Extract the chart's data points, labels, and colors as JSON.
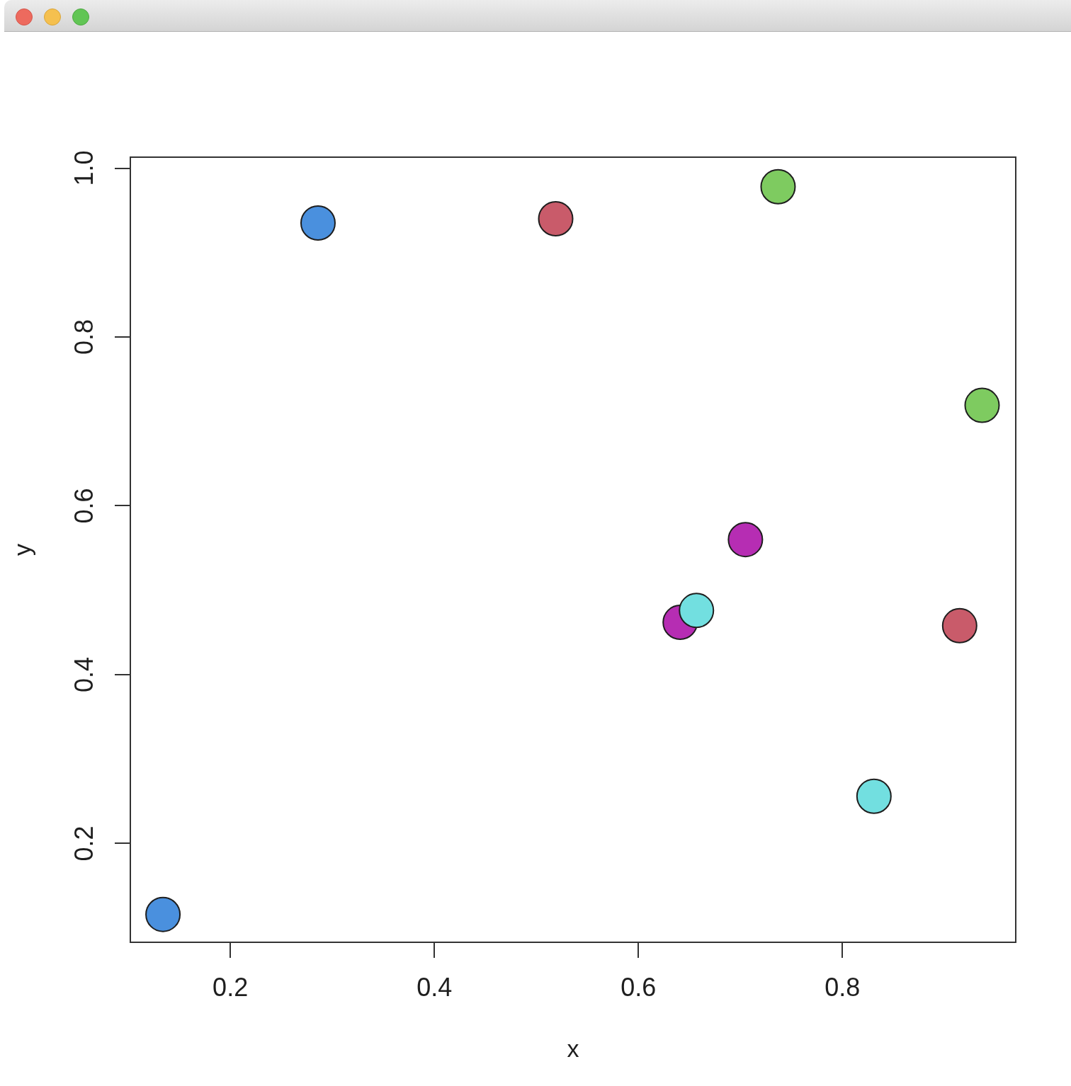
{
  "chart_data": {
    "type": "scatter",
    "xlabel": "x",
    "ylabel": "y",
    "xlim": [
      0.102,
      0.97
    ],
    "ylim": [
      0.083,
      1.013
    ],
    "xticks": [
      0.2,
      0.4,
      0.6,
      0.8
    ],
    "yticks": [
      0.2,
      0.4,
      0.6,
      0.8,
      {
        "value": 1,
        "label": "1.0"
      }
    ],
    "grid": false,
    "legend": false,
    "marker": "circle",
    "series": [
      {
        "color": "#4a90de",
        "x": [
          0.134,
          0.286
        ],
        "values": [
          0.116,
          0.935
        ]
      },
      {
        "color": "#c95b6a",
        "x": [
          0.519,
          0.915
        ],
        "values": [
          0.94,
          0.458
        ]
      },
      {
        "color": "#7ecb60",
        "x": [
          0.737,
          0.937
        ],
        "values": [
          0.978,
          0.719
        ]
      },
      {
        "color": "#b62db3",
        "x": [
          0.641,
          0.705
        ],
        "values": [
          0.462,
          0.56
        ]
      },
      {
        "color": "#72dfe0",
        "x": [
          0.657,
          0.831
        ],
        "values": [
          0.476,
          0.256
        ]
      }
    ]
  }
}
